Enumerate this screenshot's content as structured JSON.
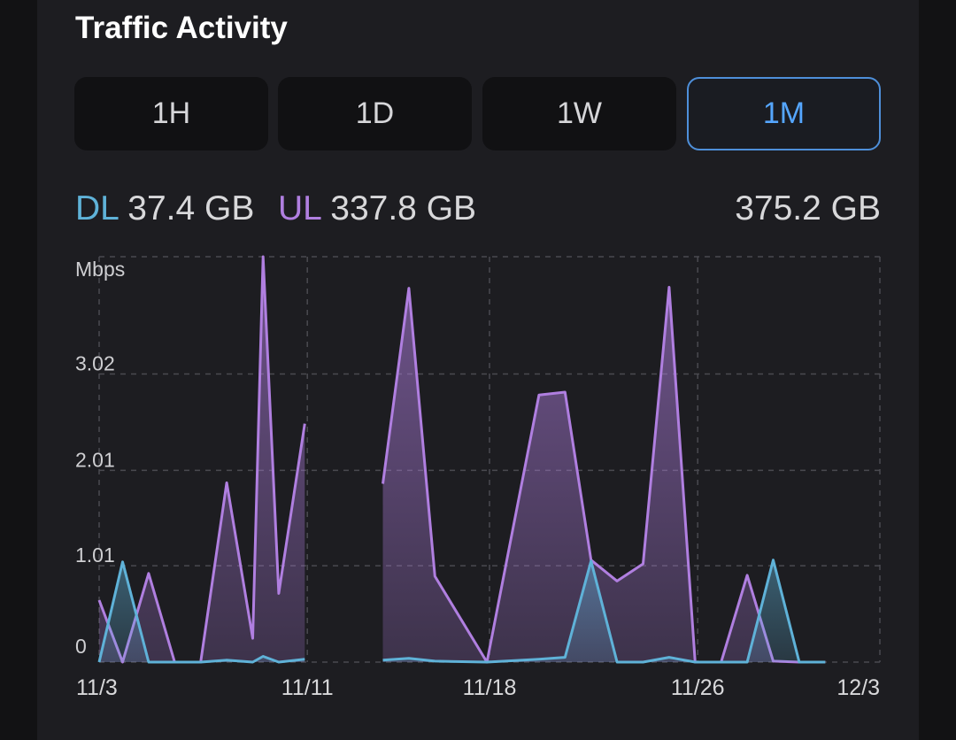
{
  "card": {
    "title": "Traffic Activity"
  },
  "ranges": [
    {
      "label": "1H",
      "active": false
    },
    {
      "label": "1D",
      "active": false
    },
    {
      "label": "1W",
      "active": false
    },
    {
      "label": "1M",
      "active": true
    }
  ],
  "summary": {
    "dl_label": "DL",
    "dl_value": "37.4 GB",
    "ul_label": "UL",
    "ul_value": "337.8 GB",
    "total": "375.2 GB"
  },
  "colors": {
    "dl": "#5fb2d8",
    "ul": "#b07fe0",
    "accent": "#4e8fd9"
  },
  "chart_data": {
    "type": "area",
    "ylabel": "Mbps",
    "y_ticks": [
      0,
      1.01,
      2.01,
      3.02
    ],
    "ylim": [
      0,
      4.25
    ],
    "x_ticks": [
      "11/3",
      "11/11",
      "11/18",
      "11/26",
      "12/3"
    ],
    "x_tick_days": [
      0,
      8,
      15,
      23,
      30
    ],
    "grid": "dashed",
    "series": [
      {
        "name": "UL",
        "segments": [
          [
            [
              -0.1,
              0.65
            ],
            [
              0.9,
              0
            ],
            [
              1.9,
              0.93
            ],
            [
              2.9,
              0
            ],
            [
              3.9,
              0
            ],
            [
              4.9,
              1.88
            ],
            [
              5.9,
              0.25
            ],
            [
              6.3,
              4.25
            ],
            [
              6.9,
              0.72
            ],
            [
              7.9,
              2.5
            ]
          ],
          [
            [
              10.9,
              1.87
            ],
            [
              11.9,
              3.92
            ],
            [
              12.9,
              0.9
            ],
            [
              14.9,
              0
            ],
            [
              16.9,
              2.8
            ],
            [
              17.9,
              2.83
            ],
            [
              18.9,
              1.07
            ],
            [
              19.9,
              0.85
            ],
            [
              20.9,
              1.03
            ],
            [
              21.9,
              3.93
            ],
            [
              22.9,
              0
            ],
            [
              23.9,
              0
            ],
            [
              24.9,
              0.91
            ],
            [
              25.9,
              0.01
            ],
            [
              26.9,
              0
            ],
            [
              27.9,
              0
            ]
          ]
        ]
      },
      {
        "name": "DL",
        "segments": [
          [
            [
              -0.1,
              0
            ],
            [
              0.9,
              1.05
            ],
            [
              1.9,
              0
            ],
            [
              2.9,
              0
            ],
            [
              3.9,
              0
            ],
            [
              4.9,
              0.02
            ],
            [
              5.9,
              0
            ],
            [
              6.3,
              0.06
            ],
            [
              6.9,
              0
            ],
            [
              7.9,
              0.03
            ]
          ],
          [
            [
              10.9,
              0.02
            ],
            [
              11.9,
              0.04
            ],
            [
              12.9,
              0.01
            ],
            [
              14.9,
              0
            ],
            [
              16.9,
              0.03
            ],
            [
              17.9,
              0.05
            ],
            [
              18.9,
              1.06
            ],
            [
              19.9,
              0
            ],
            [
              20.9,
              0
            ],
            [
              21.9,
              0.05
            ],
            [
              22.9,
              0
            ],
            [
              23.9,
              0
            ],
            [
              24.9,
              0
            ],
            [
              25.9,
              1.07
            ],
            [
              26.9,
              0
            ],
            [
              27.9,
              0
            ]
          ]
        ]
      }
    ]
  }
}
